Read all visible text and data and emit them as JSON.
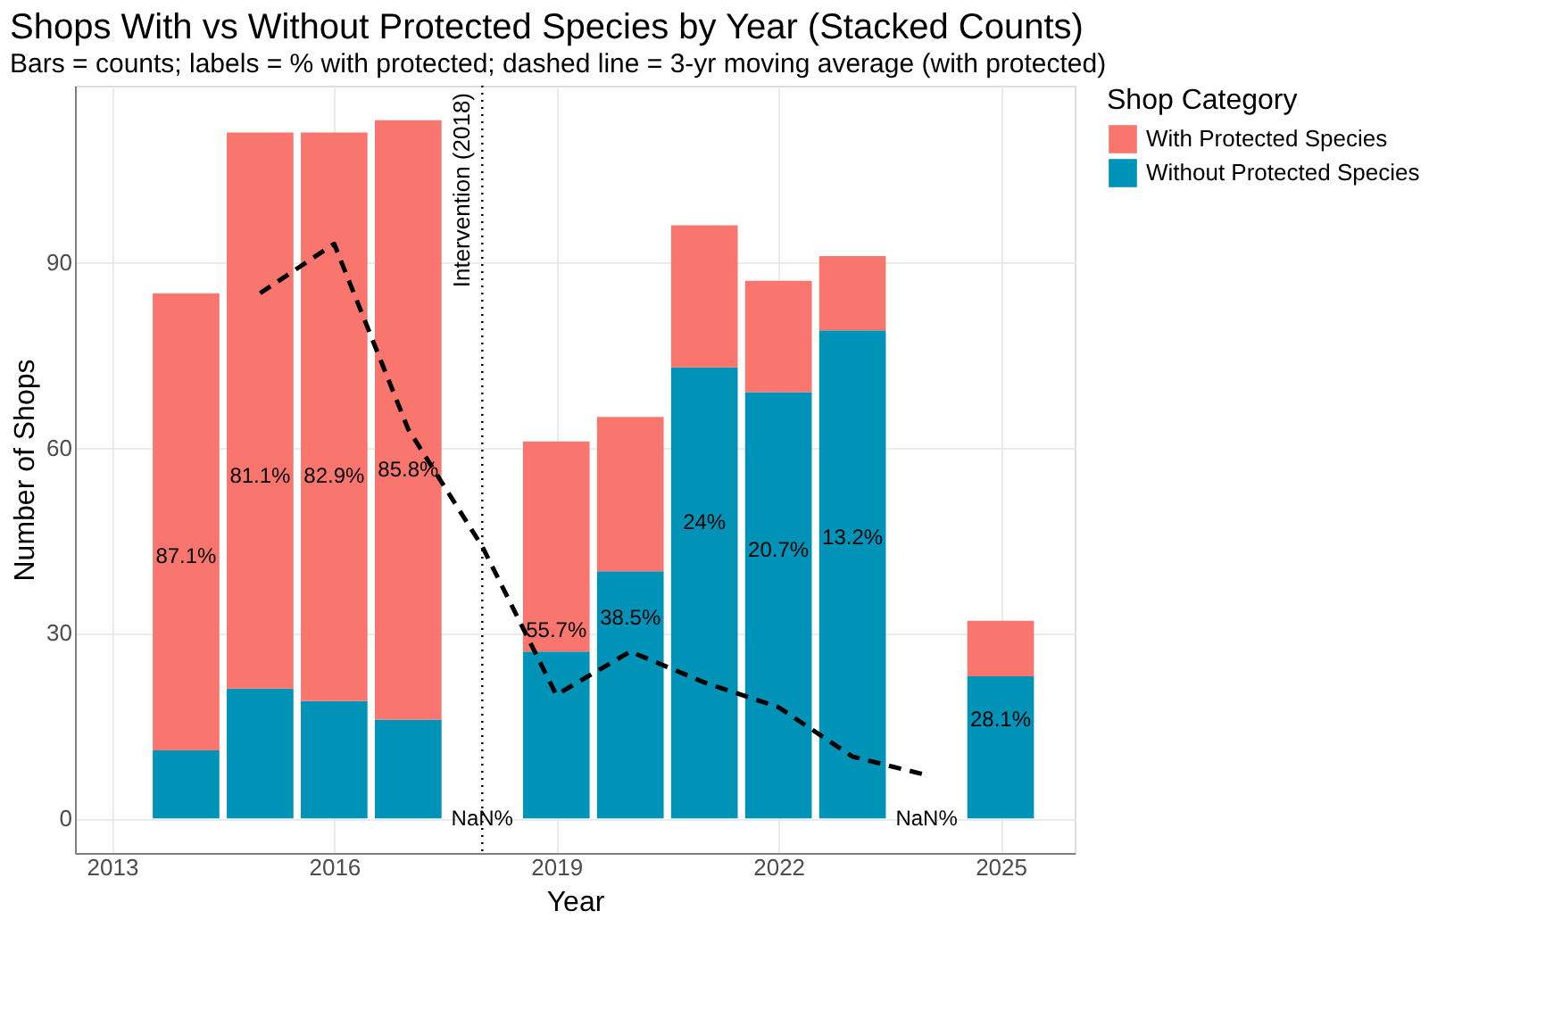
{
  "chart_data": {
    "type": "bar",
    "title": "Shops With vs Without Protected Species by Year (Stacked Counts)",
    "subtitle": "Bars = counts; labels = % with protected; dashed line = 3-yr moving average (with protected)",
    "xlabel": "Year",
    "ylabel": "Number of Shops",
    "legend_title": "Shop Category",
    "x": [
      2014,
      2015,
      2016,
      2017,
      2018,
      2019,
      2020,
      2021,
      2022,
      2023,
      2024,
      2025
    ],
    "stacked": true,
    "series": [
      {
        "name": "Without Protected Species",
        "color": "#0093b8",
        "values": [
          11,
          21,
          19,
          16,
          0,
          27,
          40,
          73,
          69,
          79,
          0,
          23
        ]
      },
      {
        "name": "With Protected Species",
        "color": "#f8766d",
        "values": [
          74,
          90,
          92,
          97,
          0,
          34,
          25,
          23,
          18,
          12,
          0,
          9
        ]
      },
      {
        "type": "line",
        "color": "#000000",
        "line_style": "dashed",
        "marker": "none",
        "x": [
          2015,
          2016,
          2017,
          2018,
          2019,
          2020,
          2021,
          2022,
          2023,
          2024
        ],
        "values": [
          85,
          93,
          63,
          44,
          20,
          27,
          22,
          18,
          10,
          7
        ]
      }
    ],
    "ref_lines": [
      {
        "axis": "x",
        "value": 2018,
        "label": "Intervention (2018)",
        "color": "#000000",
        "line_style": "dotted"
      }
    ],
    "xlim": [
      2012.5,
      2026
    ],
    "xticks": [
      2013,
      2016,
      2019,
      2022,
      2025
    ],
    "ylim": [
      -5.6,
      118.6
    ],
    "yticks": [
      0,
      30,
      60,
      90
    ],
    "annotations": [
      "87.1%",
      "81.1%",
      "82.9%",
      "85.8%",
      "NaN%",
      "55.7%",
      "38.5%",
      "24%",
      "20.7%",
      "13.2%",
      "NaN%",
      "28.1%"
    ],
    "grid": true,
    "legend": "right"
  }
}
